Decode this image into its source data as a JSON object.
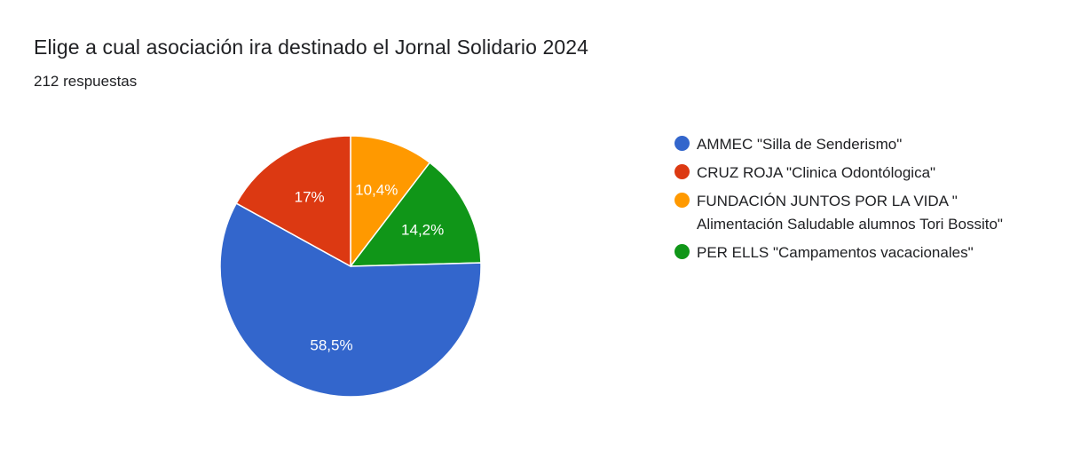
{
  "header": {
    "title": "Elige a cual asociación ira destinado el Jornal Solidario 2024",
    "responses": "212 respuestas"
  },
  "legend": [
    {
      "label": "AMMEC \"Silla de Senderismo\"",
      "color": "#3366cc"
    },
    {
      "label": "CRUZ ROJA \"Clinica Odontólogica\"",
      "color": "#dc3912"
    },
    {
      "label": "FUNDACIÓN JUNTOS POR LA VIDA \" Alimentación Saludable alumnos Tori Bossito\"",
      "color": "#ff9900"
    },
    {
      "label": "PER ELLS \"Campamentos vacacionales\"",
      "color": "#109618"
    }
  ],
  "slice_labels": [
    "58,5%",
    "17%",
    "10,4%",
    "14,2%"
  ],
  "chart_data": {
    "type": "pie",
    "title": "Elige a cual asociación ira destinado el Jornal Solidario 2024",
    "subtitle": "212 respuestas",
    "categories": [
      "AMMEC \"Silla de Senderismo\"",
      "CRUZ ROJA \"Clinica Odontólogica\"",
      "FUNDACIÓN JUNTOS POR LA VIDA \" Alimentación Saludable alumnos Tori Bossito\"",
      "PER ELLS \"Campamentos vacacionales\""
    ],
    "values": [
      58.5,
      17,
      10.4,
      14.2
    ],
    "value_labels": [
      "58,5%",
      "17%",
      "10,4%",
      "14,2%"
    ],
    "colors": [
      "#3366cc",
      "#dc3912",
      "#ff9900",
      "#109618"
    ],
    "total_responses": 212,
    "legend_position": "right"
  }
}
